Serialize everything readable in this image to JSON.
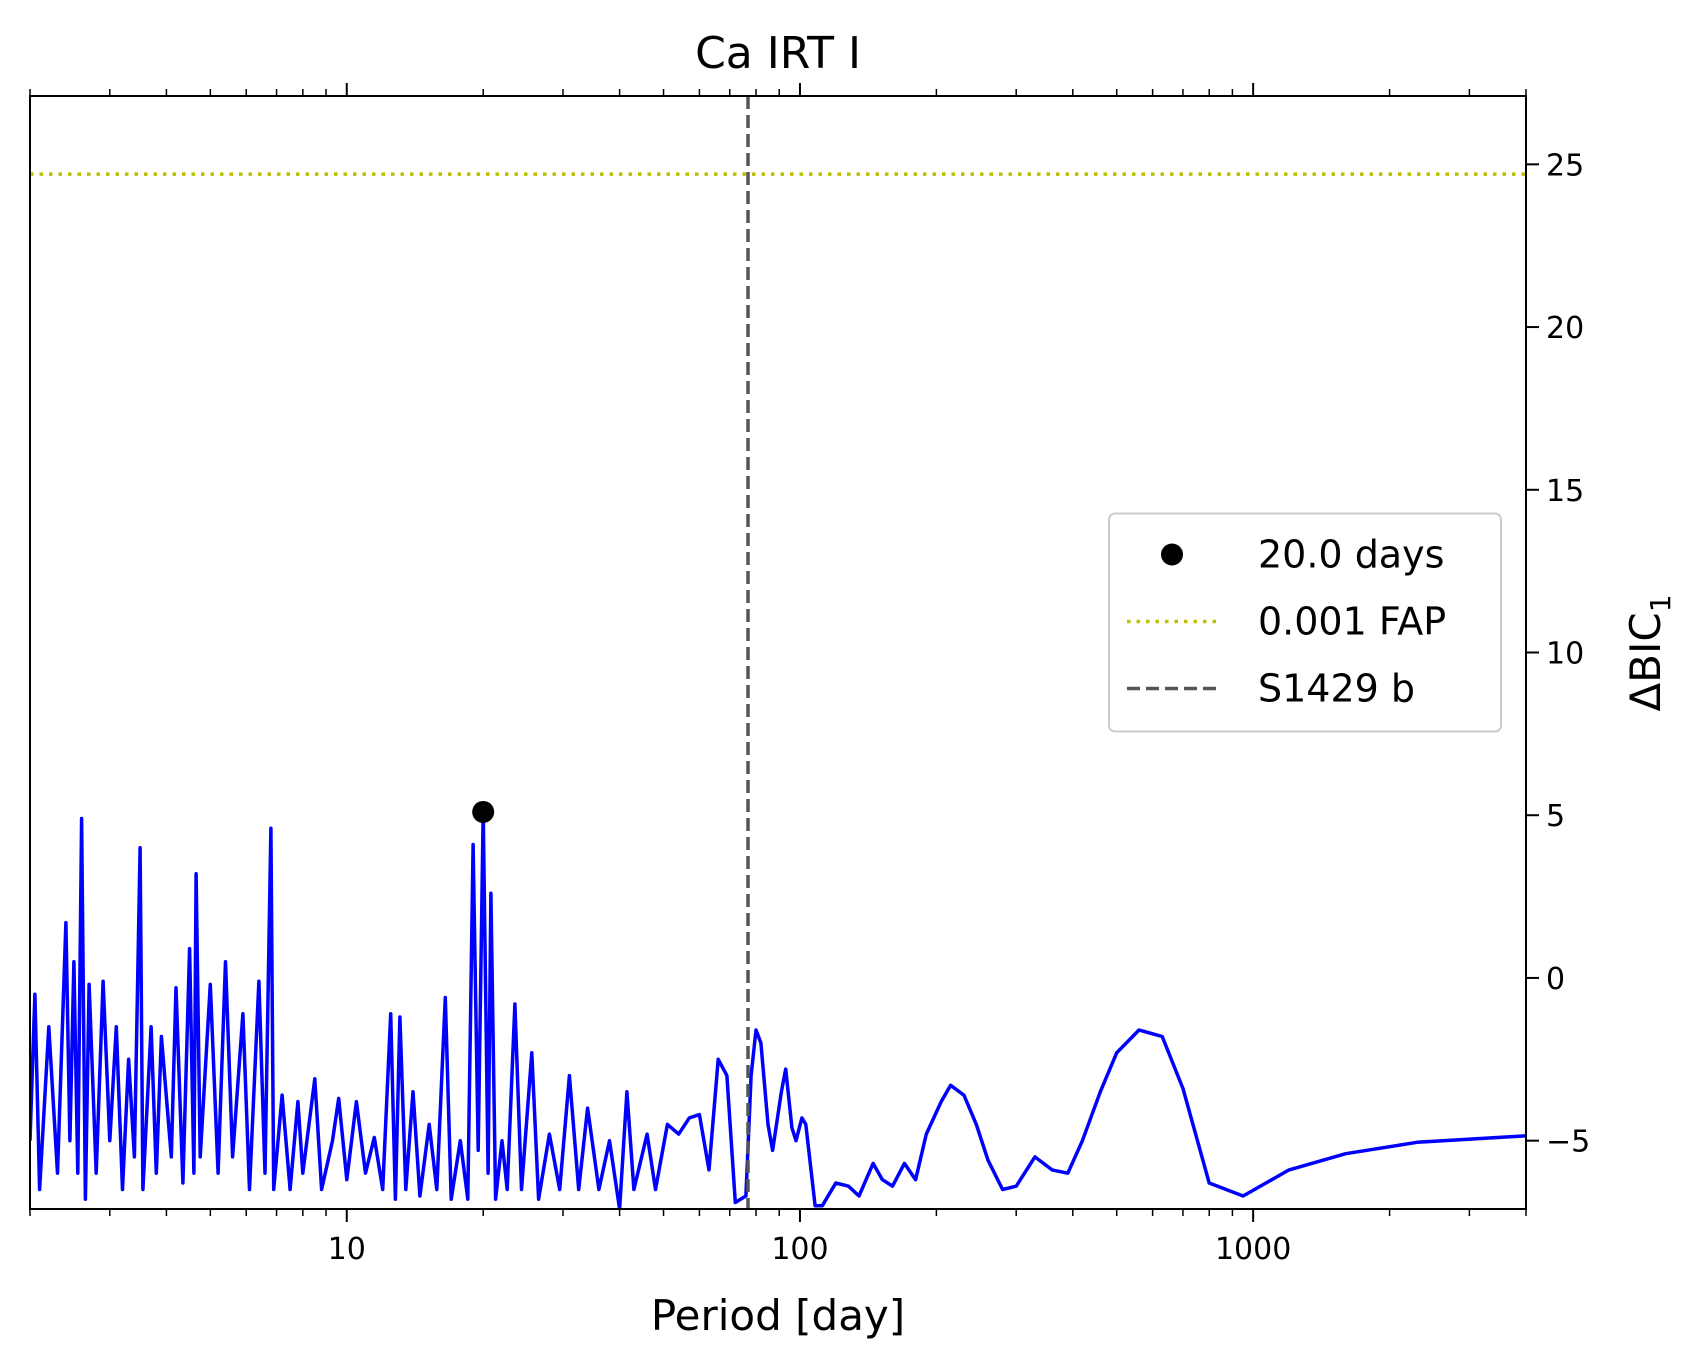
{
  "chart_data": {
    "type": "line",
    "title": "Ca IRT I",
    "xlabel": "Period [day]",
    "ylabel": "ΔBIC",
    "ylabel_subscript": "1",
    "xscale": "log",
    "xlim": [
      2,
      4000
    ],
    "xticks": [
      10,
      100,
      1000
    ],
    "ylim": [
      -7.1,
      27.1
    ],
    "yticks": [
      {
        "value": -5,
        "label": "−5"
      },
      0,
      5,
      10,
      15,
      20,
      25
    ],
    "yaxis_side": "right",
    "legend": "center right",
    "series": [
      {
        "name": "ΔBIC",
        "color": "#0000ff",
        "x": [
          2.0,
          2.05,
          2.1,
          2.2,
          2.3,
          2.4,
          2.45,
          2.5,
          2.55,
          2.6,
          2.65,
          2.7,
          2.8,
          2.9,
          3.0,
          3.1,
          3.2,
          3.3,
          3.4,
          3.5,
          3.55,
          3.7,
          3.8,
          3.9,
          4.1,
          4.2,
          4.35,
          4.5,
          4.6,
          4.65,
          4.75,
          5.0,
          5.2,
          5.4,
          5.6,
          5.9,
          6.1,
          6.4,
          6.6,
          6.8,
          6.9,
          7.2,
          7.5,
          7.8,
          8.0,
          8.5,
          8.8,
          9.3,
          9.6,
          10.0,
          10.5,
          11.0,
          11.5,
          12.0,
          12.5,
          12.8,
          13.1,
          13.5,
          14.0,
          14.5,
          15.2,
          15.8,
          16.5,
          17.0,
          17.8,
          18.5,
          19.0,
          19.5,
          20.0,
          20.5,
          20.8,
          21.3,
          22.0,
          22.6,
          23.5,
          24.3,
          25.6,
          26.5,
          28,
          29.5,
          31,
          32.5,
          34,
          36,
          38,
          40,
          41.5,
          43,
          46,
          48,
          51,
          54,
          57,
          60,
          63,
          66,
          69,
          72,
          76,
          78,
          80,
          82,
          85,
          87,
          91,
          93,
          96,
          98,
          101,
          103,
          108,
          112,
          120,
          128,
          135,
          145,
          152,
          160,
          170,
          180,
          190,
          205,
          215,
          230,
          245,
          260,
          280,
          300,
          330,
          360,
          390,
          420,
          460,
          500,
          560,
          630,
          700,
          800,
          950,
          1200,
          1600,
          2300,
          4000
        ],
        "values": [
          -5,
          -0.5,
          -6.5,
          -1.5,
          -6,
          1.7,
          -5,
          0.5,
          -6,
          4.9,
          -6.8,
          -0.2,
          -6,
          -0.1,
          -5,
          -1.5,
          -6.5,
          -2.5,
          -5.5,
          4.0,
          -6.5,
          -1.5,
          -6,
          -1.8,
          -5.5,
          -0.3,
          -6.3,
          0.9,
          -6,
          3.2,
          -5.5,
          -0.2,
          -6,
          0.5,
          -5.5,
          -1.1,
          -6.5,
          -0.1,
          -6,
          4.6,
          -6.5,
          -3.6,
          -6.5,
          -3.8,
          -6,
          -3.1,
          -6.5,
          -5,
          -3.7,
          -6.2,
          -3.8,
          -6,
          -4.9,
          -6.5,
          -1.1,
          -6.8,
          -1.2,
          -6.5,
          -3.5,
          -6.7,
          -4.5,
          -6.5,
          -0.6,
          -6.8,
          -5,
          -6.8,
          4.1,
          -5.3,
          5.1,
          -6,
          2.6,
          -6.8,
          -5,
          -6.5,
          -0.8,
          -6.5,
          -2.3,
          -6.8,
          -4.8,
          -6.5,
          -3,
          -6.5,
          -4,
          -6.5,
          -5,
          -7.1,
          -3.5,
          -6.5,
          -4.8,
          -6.5,
          -4.5,
          -4.8,
          -4.3,
          -4.2,
          -5.9,
          -2.5,
          -3,
          -6.9,
          -6.7,
          -3,
          -1.6,
          -2,
          -4.5,
          -5.3,
          -3.5,
          -2.8,
          -4.6,
          -5,
          -4.3,
          -4.5,
          -7.0,
          -7.0,
          -6.3,
          -6.4,
          -6.7,
          -5.7,
          -6.2,
          -6.4,
          -5.7,
          -6.2,
          -4.8,
          -3.8,
          -3.3,
          -3.6,
          -4.5,
          -5.6,
          -6.5,
          -6.4,
          -5.5,
          -5.9,
          -6,
          -5,
          -3.5,
          -2.3,
          -1.6,
          -1.8,
          -3.4,
          -6.3,
          -6.7,
          -5.9,
          -5.4,
          -5.05,
          -4.85
        ]
      },
      {
        "name": "20.0 days",
        "color": "#000000",
        "marker": "o",
        "x": [
          20.0
        ],
        "values": [
          5.1
        ]
      },
      {
        "name": "0.001 FAP",
        "color": "#bfbf00",
        "style": "dotted",
        "hline": 24.7
      },
      {
        "name": "S1429 b",
        "color": "#555555",
        "style": "dashed",
        "vline": 76.8
      }
    ]
  }
}
